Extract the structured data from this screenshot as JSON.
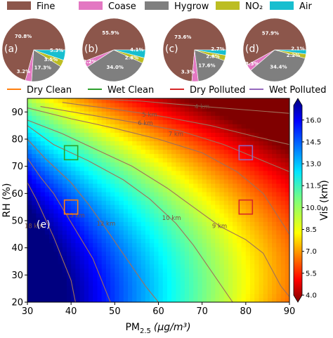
{
  "chart_data": [
    {
      "type": "pie",
      "legend": {
        "placement": "top",
        "entries": [
          {
            "name": "Fine",
            "color": "#8c564b"
          },
          {
            "name": "Coase",
            "color": "#e377c2"
          },
          {
            "name": "Hygrow",
            "color": "#7f7f7f"
          },
          {
            "name": "NO₂",
            "color": "#bcbd22"
          },
          {
            "name": "Air",
            "color": "#17becf"
          }
        ]
      },
      "panels": [
        {
          "label": "(a)",
          "slices": [
            {
              "name": "Fine",
              "value": 70.8,
              "text": "70.8%"
            },
            {
              "name": "Coase",
              "value": 3.2,
              "text": "3.2%"
            },
            {
              "name": "Hygrow",
              "value": 17.3,
              "text": "17.3%"
            },
            {
              "name": "NO₂",
              "value": 3.5,
              "text": "3.5%"
            },
            {
              "name": "Air",
              "value": 5.3,
              "text": "5.3%"
            }
          ]
        },
        {
          "label": "(b)",
          "slices": [
            {
              "name": "Fine",
              "value": 55.9,
              "text": "55.9%"
            },
            {
              "name": "Coase",
              "value": 3.2,
              "text": "3.2%"
            },
            {
              "name": "Hygrow",
              "value": 34.0,
              "text": "34.0%"
            },
            {
              "name": "NO₂",
              "value": 2.8,
              "text": "2.8%"
            },
            {
              "name": "Air",
              "value": 4.1,
              "text": "4.1%"
            }
          ]
        },
        {
          "label": "(c)",
          "slices": [
            {
              "name": "Fine",
              "value": 73.6,
              "text": "73.6%"
            },
            {
              "name": "Coase",
              "value": 3.3,
              "text": "3.3%"
            },
            {
              "name": "Hygrow",
              "value": 17.6,
              "text": "17.6%"
            },
            {
              "name": "NO₂",
              "value": 2.8,
              "text": "2.8%"
            },
            {
              "name": "Air",
              "value": 2.7,
              "text": "2.7%"
            }
          ]
        },
        {
          "label": "(d)",
          "slices": [
            {
              "name": "Fine",
              "value": 57.9,
              "text": "57.9%"
            },
            {
              "name": "Coase",
              "value": 3.3,
              "text": "3.3%"
            },
            {
              "name": "Hygrow",
              "value": 34.4,
              "text": "34.4%"
            },
            {
              "name": "NO₂",
              "value": 2.2,
              "text": "2.2%"
            },
            {
              "name": "Air",
              "value": 2.1,
              "text": "2.1%"
            }
          ]
        }
      ]
    },
    {
      "type": "heatmap",
      "panel_label": "(e)",
      "xlabel": "PM",
      "xlabel_sub": "2.5",
      "xlabel_units": "(μg/m³)",
      "ylabel": "RH (%)",
      "xlim": [
        30,
        90
      ],
      "ylim": [
        20,
        95
      ],
      "xticks": [
        30,
        40,
        50,
        60,
        70,
        80,
        90
      ],
      "yticks": [
        20,
        30,
        40,
        50,
        60,
        70,
        80,
        90
      ],
      "colorbar": {
        "label": "Vis (km)",
        "range": [
          4.0,
          17.0
        ],
        "ticks": [
          "4.0",
          "5.5",
          "7.0",
          "8.5",
          "10.0",
          "11.5",
          "13.0",
          "14.5",
          "16.0"
        ],
        "colormap": "jet_reversed"
      },
      "contours": [
        {
          "label": "4 km",
          "value": 4,
          "points": [
            [
              43,
              95
            ],
            [
              56,
              94
            ],
            [
              72,
              91.8
            ],
            [
              90,
              89.5
            ]
          ],
          "label_at": [
            70,
            92
          ]
        },
        {
          "label": "5 km",
          "value": 5,
          "points": [
            [
              38,
              93.5
            ],
            [
              50,
              91
            ],
            [
              60,
              88.6
            ],
            [
              72,
              85
            ],
            [
              82,
              81
            ],
            [
              90,
              78
            ]
          ],
          "label_at": [
            58,
            89
          ]
        },
        {
          "label": "6 km",
          "value": 6,
          "points": [
            [
              33,
              92
            ],
            [
              44,
              89
            ],
            [
              55,
              86
            ],
            [
              65,
              83
            ],
            [
              75,
              78
            ],
            [
              84,
              72
            ],
            [
              90,
              68
            ]
          ],
          "label_at": [
            57,
            86
          ]
        },
        {
          "label": "7 km",
          "value": 7,
          "points": [
            [
              30,
              91.5
            ],
            [
              40,
              87.5
            ],
            [
              50,
              84
            ],
            [
              60,
              80
            ],
            [
              70,
              75
            ],
            [
              78,
              68
            ],
            [
              84,
              60
            ],
            [
              88,
              50
            ],
            [
              90,
              45
            ]
          ],
          "label_at": [
            64,
            82
          ]
        },
        {
          "label": "9 km",
          "value": 9,
          "points": [
            [
              30,
              87
            ],
            [
              38,
              82
            ],
            [
              46,
              76
            ],
            [
              54,
              70
            ],
            [
              62,
              62
            ],
            [
              68,
              55
            ],
            [
              74,
              48
            ],
            [
              80,
              43
            ],
            [
              84,
              38
            ],
            [
              86,
              32
            ],
            [
              88,
              26
            ],
            [
              90,
              22
            ]
          ],
          "label_at": [
            74,
            48
          ]
        },
        {
          "label": "10 km",
          "value": 10,
          "points": [
            [
              30,
              85
            ],
            [
              36,
              78
            ],
            [
              44,
              72
            ],
            [
              52,
              65
            ],
            [
              58,
              58
            ],
            [
              64,
              49
            ],
            [
              68,
              41
            ],
            [
              71,
              34
            ],
            [
              74,
              27
            ],
            [
              77,
              20
            ]
          ],
          "label_at": [
            63,
            51
          ]
        },
        {
          "label": "12 km",
          "value": 12,
          "points": [
            [
              30,
              80
            ],
            [
              34,
              73
            ],
            [
              40,
              64
            ],
            [
              44,
              56
            ],
            [
              48,
              47
            ],
            [
              51,
              40
            ],
            [
              54,
              33
            ],
            [
              57,
              26
            ],
            [
              60,
              20
            ]
          ],
          "label_at": [
            48,
            49
          ]
        },
        {
          "label": "15 km",
          "value": 15,
          "points": [
            [
              30,
              73
            ],
            [
              33,
              66
            ],
            [
              36,
              60
            ],
            [
              39,
              52
            ],
            [
              42,
              44
            ],
            [
              45,
              36
            ],
            [
              47,
              28
            ],
            [
              49,
              20
            ]
          ],
          "label_at": [
            41,
            52
          ]
        },
        {
          "label": "18 km",
          "value": 18,
          "points": [
            [
              30,
              64
            ],
            [
              32,
              58
            ],
            [
              34,
              51
            ],
            [
              36,
              44
            ],
            [
              38,
              36
            ],
            [
              40,
              28
            ],
            [
              41,
              20
            ]
          ],
          "label_at": [
            31.5,
            48
          ]
        }
      ],
      "markers": [
        {
          "name": "Dry Clean",
          "x": 40,
          "y": 55,
          "color": "#ff7f0e"
        },
        {
          "name": "Wet Clean",
          "x": 40,
          "y": 75,
          "color": "#2ca02c"
        },
        {
          "name": "Dry Polluted",
          "x": 80,
          "y": 55,
          "color": "#d62728"
        },
        {
          "name": "Wet Polluted",
          "x": 80,
          "y": 75,
          "color": "#9467bd"
        }
      ]
    }
  ]
}
